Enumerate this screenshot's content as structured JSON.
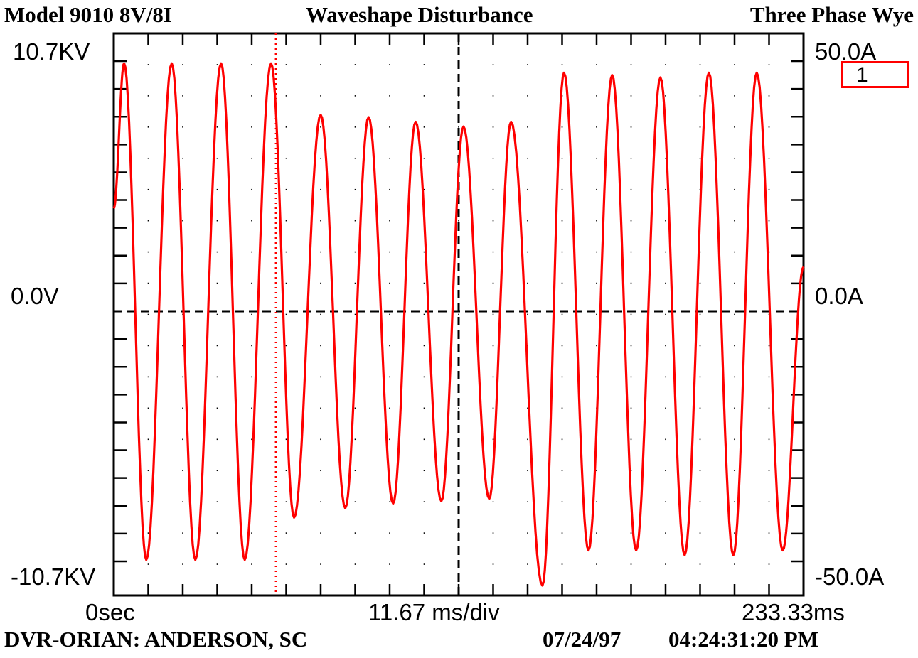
{
  "header": {
    "model": "Model 9010 8V/8I",
    "title": "Waveshape Disturbance",
    "config": "Three Phase Wye"
  },
  "footer": {
    "site": "DVR-ORIAN: ANDERSON, SC",
    "date": "07/24/97",
    "time": "04:24:31:20 PM"
  },
  "axes": {
    "left_top": "10.7KV",
    "left_mid": "0.0V",
    "left_bottom": "-10.7KV",
    "right_top": "50.0A",
    "right_mid": "0.0A",
    "right_bottom": "-50.0A",
    "x_start": "0sec",
    "x_mid": "11.67 ms/div",
    "x_end": "233.33ms"
  },
  "channel": {
    "label": "1",
    "color": "#ff0000"
  },
  "chart_data": {
    "type": "line",
    "title": "Waveshape Disturbance",
    "xlabel": "11.67 ms/div",
    "ylabel": "",
    "x_unit": "ms",
    "y_unit": "KV",
    "xlim": [
      0,
      233.33
    ],
    "ylim": [
      -10.7,
      10.7
    ],
    "grid": true,
    "cursor_ms": 54.8,
    "series": [
      {
        "color": "#ff0000",
        "cycles": [
          {
            "peak_ms": 3.5,
            "max": 10.6,
            "trough_ms": 11.0,
            "min": -10.6
          },
          {
            "peak_ms": 19.6,
            "max": 10.6,
            "trough_ms": 27.6,
            "min": -10.6
          },
          {
            "peak_ms": 36.3,
            "max": 10.6,
            "trough_ms": 44.3,
            "min": -10.6
          },
          {
            "peak_ms": 53.2,
            "max": 10.6,
            "trough_ms": 61.0,
            "min": -8.8
          },
          {
            "peak_ms": 70.0,
            "max": 8.4,
            "trough_ms": 78.3,
            "min": -8.4
          },
          {
            "peak_ms": 86.2,
            "max": 8.3,
            "trough_ms": 94.5,
            "min": -8.2
          },
          {
            "peak_ms": 102.1,
            "max": 8.1,
            "trough_ms": 110.8,
            "min": -8.1
          },
          {
            "peak_ms": 118.3,
            "max": 7.9,
            "trough_ms": 127.0,
            "min": -8.0
          },
          {
            "peak_ms": 134.4,
            "max": 8.1,
            "trough_ms": 145.0,
            "min": -11.7
          },
          {
            "peak_ms": 152.3,
            "max": 10.2,
            "trough_ms": 160.6,
            "min": -10.2
          },
          {
            "peak_ms": 168.6,
            "max": 10.1,
            "trough_ms": 176.7,
            "min": -10.2
          },
          {
            "peak_ms": 184.9,
            "max": 10.0,
            "trough_ms": 193.1,
            "min": -10.4
          },
          {
            "peak_ms": 201.3,
            "max": 10.2,
            "trough_ms": 209.6,
            "min": -10.4
          },
          {
            "peak_ms": 217.5,
            "max": 10.2,
            "trough_ms": 226.3,
            "min": -10.2
          }
        ],
        "start": {
          "x": 0,
          "y": 4.4
        },
        "end": {
          "x": 233.33,
          "y": 1.9
        }
      }
    ]
  }
}
